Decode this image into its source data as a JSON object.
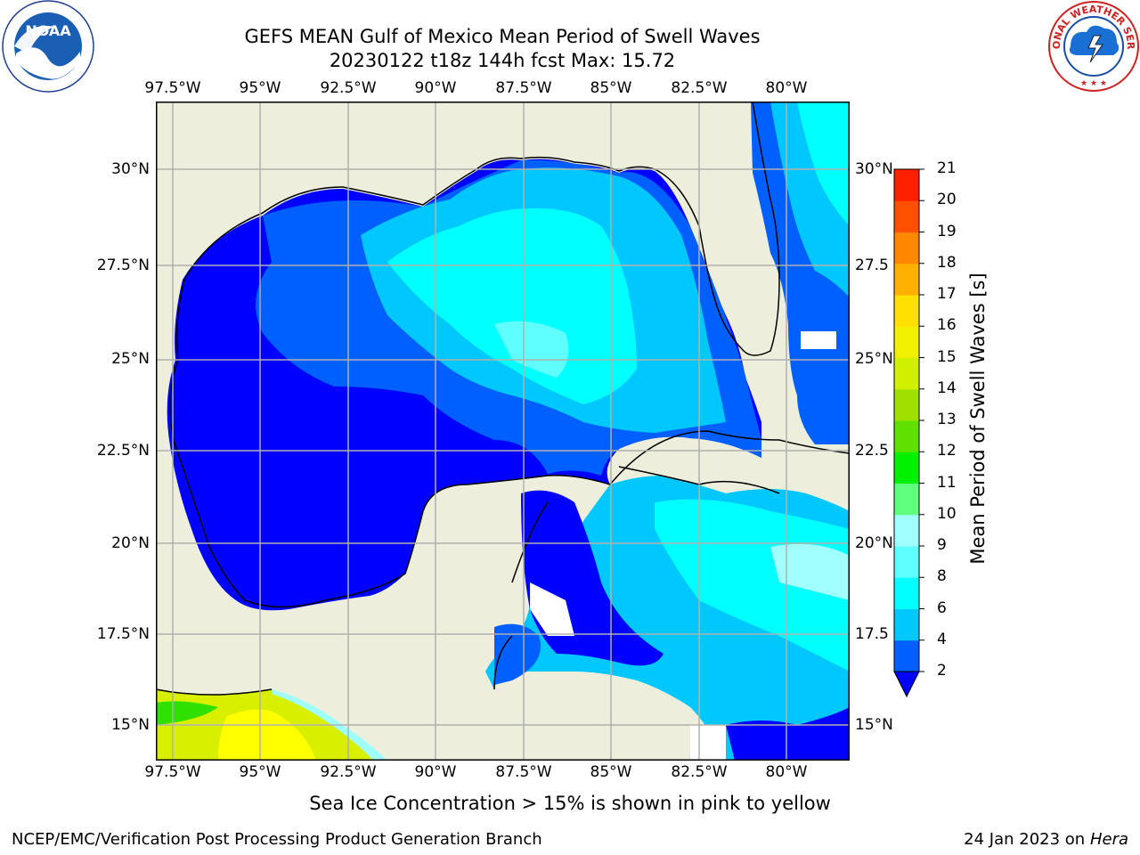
{
  "title": {
    "line1": "GEFS MEAN Gulf of Mexico Mean Period of Swell Waves",
    "line2": "20230122 t18z 144h fcst   Max: 15.72"
  },
  "axes": {
    "lon_top": [
      "97.5°W",
      "95°W",
      "92.5°W",
      "90°W",
      "87.5°W",
      "85°W",
      "82.5°W",
      "80°W"
    ],
    "lon_bottom": [
      "97.5°W",
      "95°W",
      "92.5°W",
      "90°W",
      "87.5°W",
      "85°W",
      "82.5°W",
      "80°W"
    ],
    "lat_left": [
      "30°N",
      "27.5°N",
      "25°N",
      "22.5°N",
      "20°N",
      "17.5°N",
      "15°N"
    ],
    "lat_right": [
      "30°N",
      "27.5",
      "25°N",
      "22.5",
      "20°N",
      "17.5",
      "15°N"
    ]
  },
  "colorbar": {
    "label": "Mean Period of Swell Waves [s]",
    "ticks": [
      "2",
      "4",
      "6",
      "8",
      "9",
      "10",
      "11",
      "12",
      "13",
      "14",
      "15",
      "16",
      "17",
      "18",
      "19",
      "20",
      "21"
    ],
    "colors": [
      "#0060ff",
      "#00c8ff",
      "#00ffff",
      "#60ffff",
      "#a0ffff",
      "#60ff80",
      "#00f000",
      "#60e000",
      "#a0e000",
      "#d0f000",
      "#f0f000",
      "#ffe000",
      "#ffb000",
      "#ff8800",
      "#ff5000",
      "#ff2000",
      "#ff0000"
    ],
    "extend_color": "#0000ff"
  },
  "note": "Sea Ice Concentration > 15% is shown in pink to yellow",
  "footer": {
    "left": "NCEP/EMC/Verification Post Processing Product Generation Branch",
    "date": "24 Jan 2023 on ",
    "machine": "Hera"
  },
  "logos": {
    "noaa_text": "NOAA",
    "noaa_ring": "NATIONAL OCEANIC AND ATMOSPHERIC ADMINISTRATION · U.S. DEPARTMENT OF COMMERCE",
    "nws_ring": "NATIONAL WEATHER SERVICE"
  },
  "palette": {
    "land": "#eeeedc",
    "deep_blue": "#0000ff",
    "blue": "#0060ff",
    "light_blue": "#00c8ff",
    "cyan": "#00ffff",
    "pale_cyan": "#60ffff"
  }
}
